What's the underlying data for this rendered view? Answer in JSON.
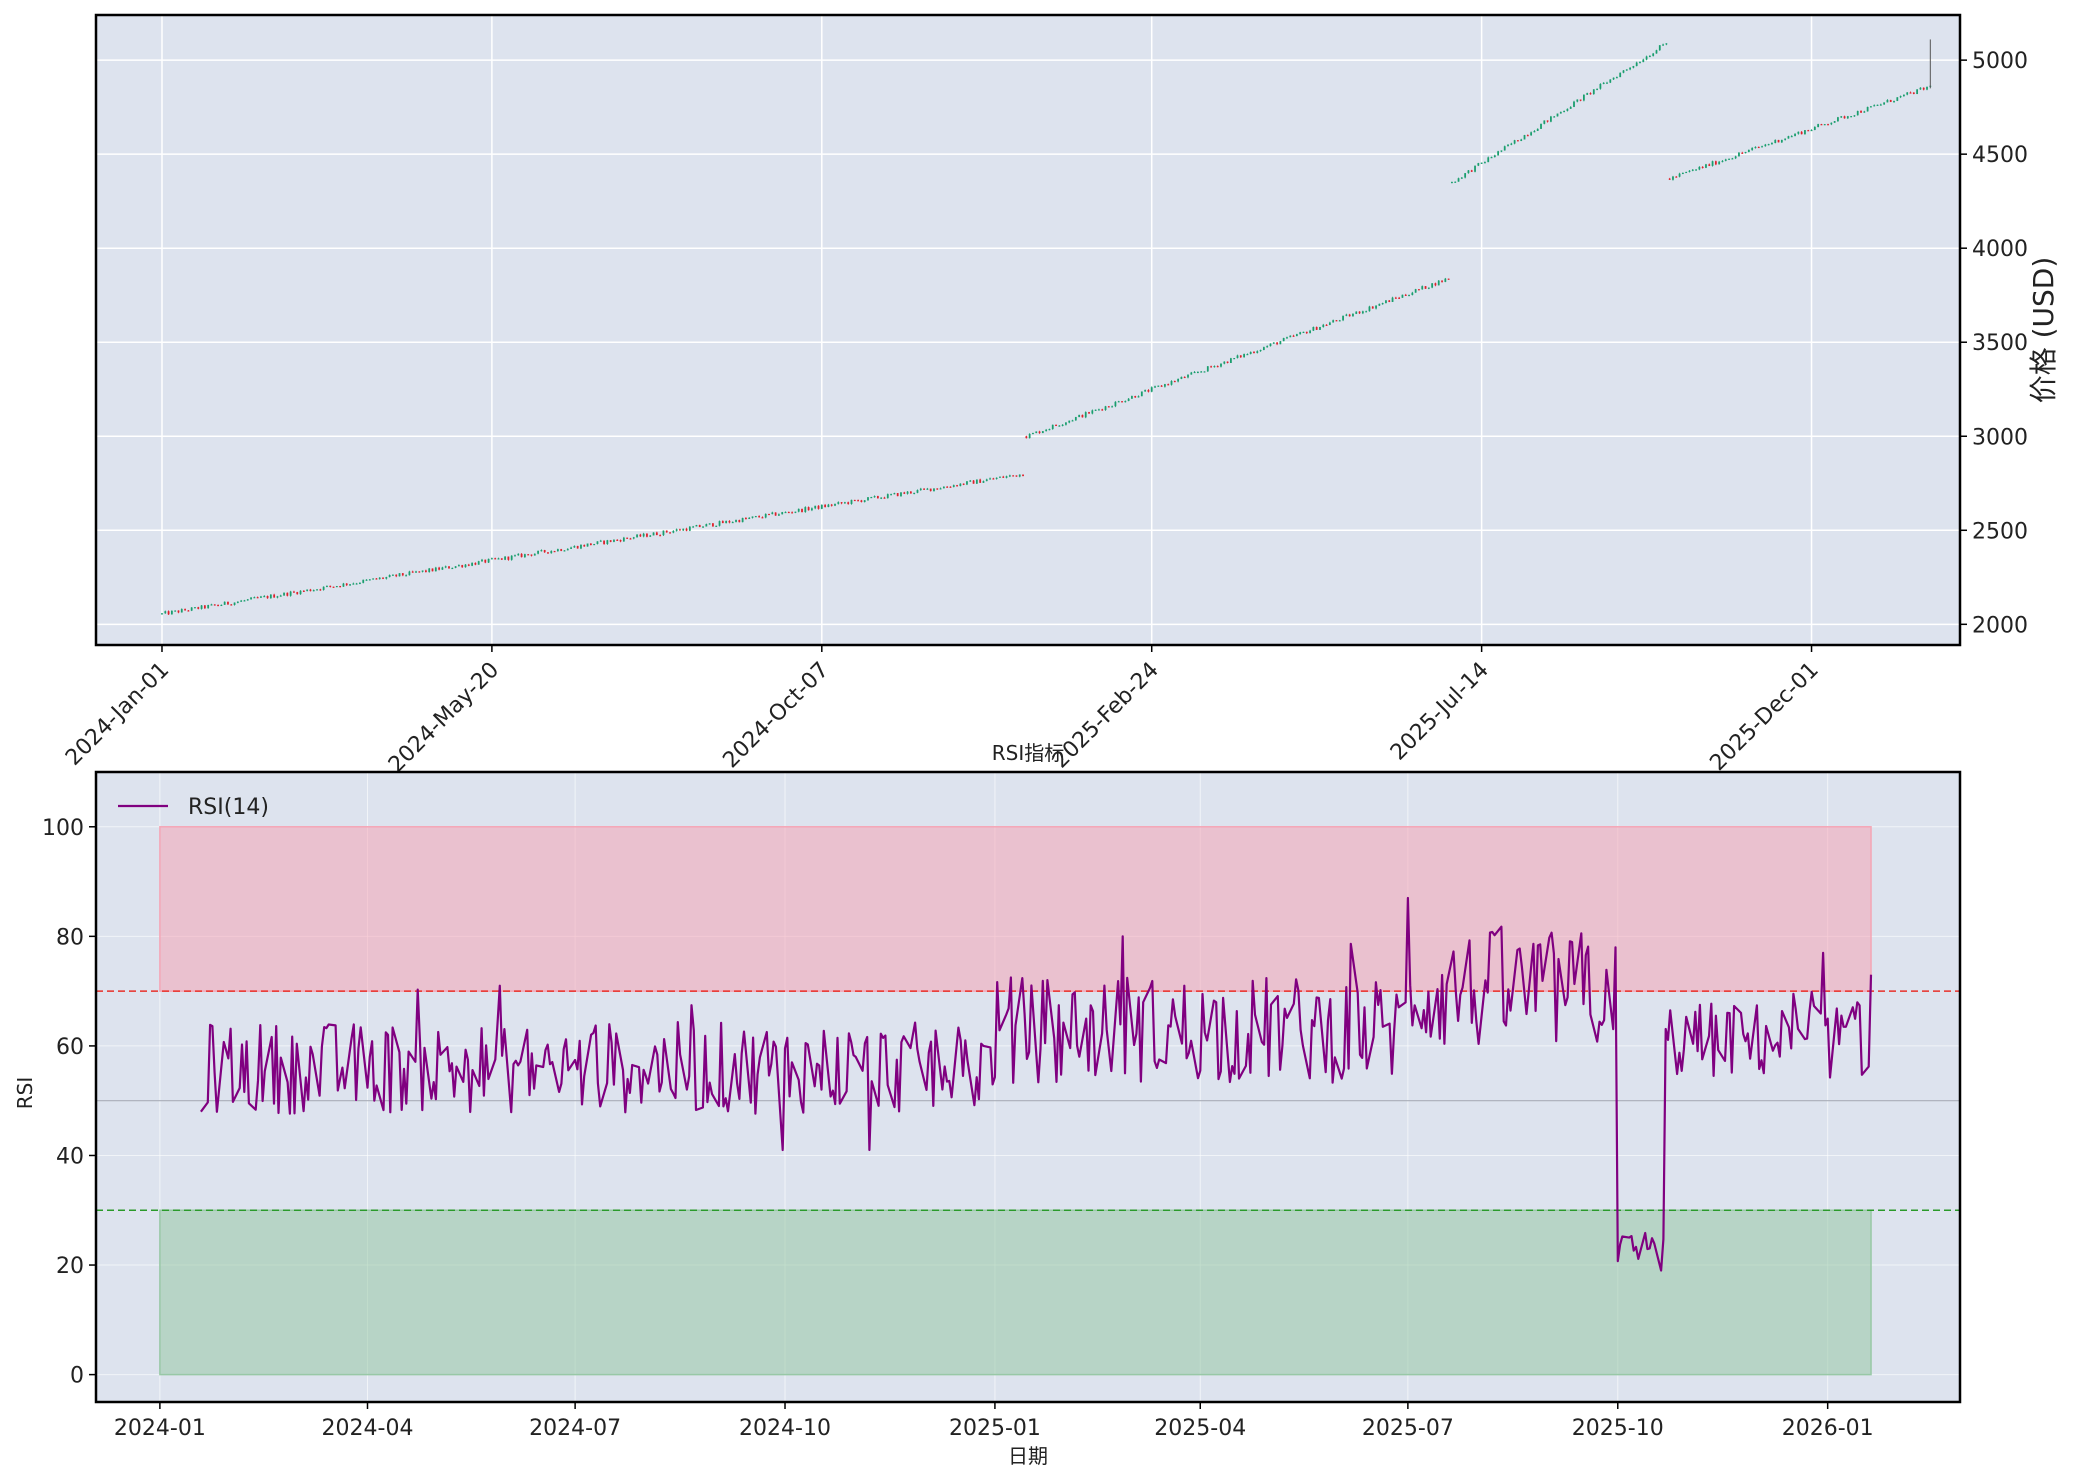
{
  "colors": {
    "axes_bg": "#dde3ee",
    "grid": "#ffffff",
    "up": "#1a9e6e",
    "down": "#e0202a",
    "rsi": "#800080",
    "overbought_line": "#e8302a",
    "oversold_line": "#2a9a2a",
    "overbought_fill": "#f4a6b6",
    "oversold_fill": "#98c8a6",
    "midline": "#a9aeb8"
  },
  "price_panel": {
    "ylabel": "价格 (USD)",
    "yticks": [
      "2000",
      "2500",
      "3000",
      "3500",
      "4000",
      "4500",
      "5000"
    ],
    "xticks": [
      "2024-Jan-01",
      "2024-May-20",
      "2024-Oct-07",
      "2025-Feb-24",
      "2025-Jul-14",
      "2025-Dec-01"
    ]
  },
  "rsi_panel": {
    "title": "RSI指标",
    "ylabel": "RSI",
    "xlabel": "日期",
    "legend_label": "RSI(14)",
    "yticks": [
      "0",
      "20",
      "40",
      "60",
      "80",
      "100"
    ],
    "xticks": [
      "2024-01",
      "2024-04",
      "2024-07",
      "2024-10",
      "2025-01",
      "2025-04",
      "2025-07",
      "2025-10",
      "2026-01"
    ]
  },
  "chart_data": [
    {
      "type": "candlestick",
      "ylabel": "价格 (USD)",
      "ylim": [
        1890,
        5240
      ],
      "x_range": [
        "2023-12-04",
        "2026-02-02"
      ],
      "x_unit": "trading day",
      "grid": true,
      "segments": [
        {
          "x_start": "2024-01-01",
          "x_end": "2024-12-31",
          "open_start": 2055,
          "close_end": 2800
        },
        {
          "x_start": "2025-01-01",
          "x_end": "2025-06-30",
          "open_start": 3000,
          "close_end": 3840
        },
        {
          "x_start": "2025-07-01",
          "x_end": "2025-09-30",
          "open_start": 4350,
          "close_end": 5090
        },
        {
          "x_start": "2025-10-01",
          "x_end": "2026-01-20",
          "open_start": 4370,
          "close_end": 4860
        }
      ],
      "last_candle": {
        "x": "2026-01-20",
        "high": 5110,
        "low": 4850
      }
    },
    {
      "type": "line",
      "title": "RSI指标",
      "xlabel": "日期",
      "ylabel": "RSI",
      "ylim": [
        -5,
        110
      ],
      "x_range": [
        "2023-12-04",
        "2026-02-28"
      ],
      "legend": "top-left",
      "grid": true,
      "series": [
        {
          "name": "RSI(14)",
          "x_start": "2024-01-19",
          "x_end": "2026-01-20",
          "segments": [
            {
              "x_start": "2024-01-19",
              "x_end": "2024-12-31",
              "base": 56,
              "amplitude": 6
            },
            {
              "x_start": "2025-01-01",
              "x_end": "2025-06-30",
              "base": 63,
              "amplitude": 7
            },
            {
              "x_start": "2025-07-01",
              "x_end": "2025-09-30",
              "base": 70,
              "amplitude": 8
            },
            {
              "x_start": "2025-10-01",
              "x_end": "2025-10-21",
              "base": 23,
              "amplitude": 2
            },
            {
              "x_start": "2025-10-22",
              "x_end": "2026-01-20",
              "base": 61,
              "amplitude": 5
            }
          ],
          "points": [
            {
              "x": "2024-01-19",
              "y": 48
            },
            {
              "x": "2024-05-29",
              "y": 71
            },
            {
              "x": "2024-09-30",
              "y": 41
            },
            {
              "x": "2024-11-07",
              "y": 41
            },
            {
              "x": "2025-02-26",
              "y": 80
            },
            {
              "x": "2025-07-01",
              "y": 87
            },
            {
              "x": "2025-09-30",
              "y": 78
            },
            {
              "x": "2025-10-20",
              "y": 19
            },
            {
              "x": "2025-12-30",
              "y": 77
            },
            {
              "x": "2026-01-20",
              "y": 73
            }
          ]
        }
      ],
      "reference_lines": [
        {
          "y": 70,
          "style": "dashed"
        },
        {
          "y": 30,
          "style": "dashed"
        },
        {
          "y": 50,
          "style": "solid"
        }
      ],
      "bands": [
        {
          "y_from": 70,
          "y_to": 100,
          "x_from": "2024-01-01",
          "x_to": "2026-01-20"
        },
        {
          "y_from": 0,
          "y_to": 30,
          "x_from": "2024-01-01",
          "x_to": "2026-01-20"
        }
      ]
    }
  ]
}
